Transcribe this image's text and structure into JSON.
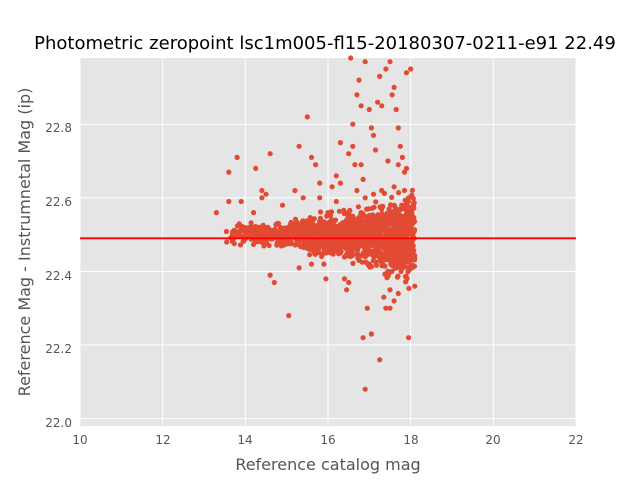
{
  "chart_data": {
    "type": "scatter",
    "title": "Photometric zeropoint lsc1m005-fl15-20180307-0211-e91 22.49",
    "xlabel": "Reference catalog mag",
    "ylabel": "Reference Mag - Instrumnetal Mag (ip)",
    "xlim": [
      10,
      22
    ],
    "ylim": [
      21.98,
      22.98
    ],
    "x_ticks": [
      "10",
      "12",
      "14",
      "16",
      "18",
      "20",
      "22"
    ],
    "y_ticks": [
      "22.0",
      "22.2",
      "22.4",
      "22.6",
      "22.8"
    ],
    "grid": true,
    "zeropoint_line": 22.49,
    "series_color": "#E24A33",
    "line_color": "#ff0000",
    "background_color": "#E5E5E5",
    "points": [
      [
        13.3,
        22.56
      ],
      [
        13.55,
        22.48
      ],
      [
        13.6,
        22.59
      ],
      [
        13.8,
        22.71
      ],
      [
        13.6,
        22.67
      ],
      [
        13.9,
        22.59
      ],
      [
        14.1,
        22.52
      ],
      [
        14.2,
        22.56
      ],
      [
        14.25,
        22.68
      ],
      [
        14.4,
        22.6
      ],
      [
        14.6,
        22.72
      ],
      [
        14.4,
        22.62
      ],
      [
        14.5,
        22.61
      ],
      [
        14.6,
        22.39
      ],
      [
        14.7,
        22.37
      ],
      [
        15.05,
        22.28
      ],
      [
        15.2,
        22.62
      ],
      [
        15.3,
        22.74
      ],
      [
        15.5,
        22.82
      ],
      [
        15.6,
        22.71
      ],
      [
        15.7,
        22.69
      ],
      [
        15.8,
        22.64
      ],
      [
        15.9,
        22.42
      ],
      [
        15.95,
        22.38
      ],
      [
        16.1,
        22.63
      ],
      [
        16.2,
        22.66
      ],
      [
        16.3,
        22.75
      ],
      [
        16.4,
        22.56
      ],
      [
        16.45,
        22.35
      ],
      [
        16.5,
        22.37
      ],
      [
        16.55,
        22.98
      ],
      [
        16.6,
        22.8
      ],
      [
        16.7,
        22.88
      ],
      [
        16.6,
        22.74
      ],
      [
        16.75,
        22.92
      ],
      [
        16.8,
        22.85
      ],
      [
        16.9,
        22.97
      ],
      [
        16.5,
        22.72
      ],
      [
        16.65,
        22.69
      ],
      [
        16.8,
        22.69
      ],
      [
        16.85,
        22.65
      ],
      [
        17.0,
        22.84
      ],
      [
        17.05,
        22.79
      ],
      [
        17.1,
        22.77
      ],
      [
        17.15,
        22.73
      ],
      [
        17.2,
        22.86
      ],
      [
        17.25,
        22.93
      ],
      [
        17.3,
        22.85
      ],
      [
        17.4,
        22.95
      ],
      [
        17.5,
        22.97
      ],
      [
        17.55,
        22.88
      ],
      [
        17.6,
        22.9
      ],
      [
        17.65,
        22.84
      ],
      [
        17.7,
        22.79
      ],
      [
        17.75,
        22.74
      ],
      [
        17.8,
        22.71
      ],
      [
        17.85,
        22.67
      ],
      [
        17.9,
        22.94
      ],
      [
        18.0,
        22.95
      ],
      [
        17.95,
        22.22
      ],
      [
        17.6,
        22.32
      ],
      [
        17.5,
        22.3
      ],
      [
        17.4,
        22.3
      ],
      [
        17.25,
        22.16
      ],
      [
        16.95,
        22.3
      ],
      [
        16.85,
        22.22
      ],
      [
        16.9,
        22.08
      ],
      [
        17.05,
        22.23
      ],
      [
        17.35,
        22.33
      ],
      [
        17.1,
        22.45
      ],
      [
        17.5,
        22.35
      ],
      [
        17.7,
        22.34
      ],
      [
        18.1,
        22.36
      ],
      [
        16.75,
        22.43
      ],
      [
        16.4,
        22.38
      ],
      [
        16.3,
        22.45
      ],
      [
        15.3,
        22.41
      ],
      [
        15.6,
        22.42
      ],
      [
        16.7,
        22.62
      ],
      [
        16.3,
        22.64
      ],
      [
        16.2,
        22.59
      ],
      [
        15.8,
        22.6
      ],
      [
        15.4,
        22.6
      ],
      [
        14.9,
        22.58
      ],
      [
        17.3,
        22.62
      ],
      [
        17.6,
        22.63
      ],
      [
        17.85,
        22.62
      ],
      [
        17.95,
        22.6
      ],
      [
        16.9,
        22.6
      ],
      [
        17.1,
        22.61
      ],
      [
        17.45,
        22.7
      ],
      [
        17.7,
        22.69
      ],
      [
        17.9,
        22.68
      ],
      [
        16.0,
        22.56
      ],
      [
        16.8,
        22.56
      ],
      [
        17.6,
        22.58
      ]
    ]
  }
}
